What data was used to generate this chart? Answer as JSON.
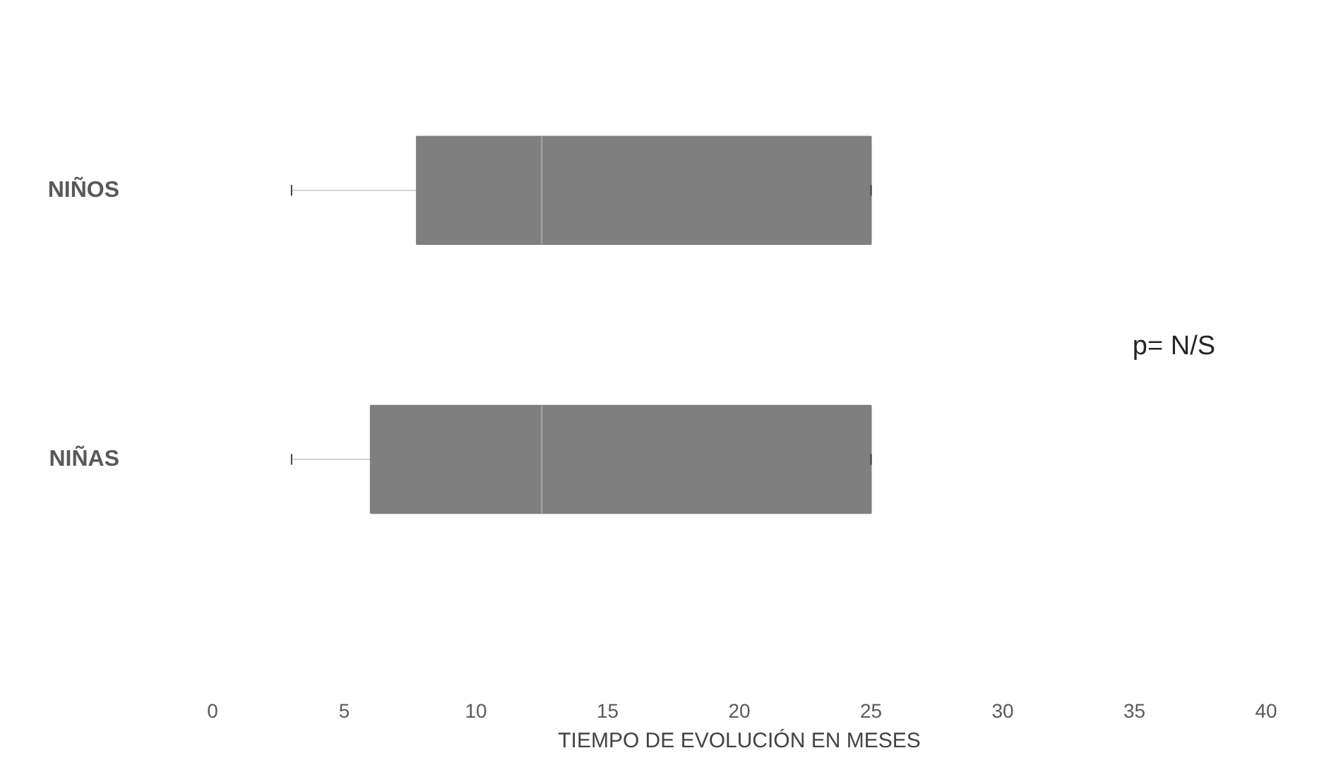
{
  "chart_data": {
    "type": "box",
    "orientation": "horizontal",
    "categories": [
      "NIÑOS",
      "NIÑAS"
    ],
    "boxes": [
      {
        "low": 3,
        "q1": 7.75,
        "median": 12.5,
        "q3": 25,
        "high": 25
      },
      {
        "low": 3,
        "q1": 6,
        "median": 12.5,
        "q3": 25,
        "high": 25
      }
    ],
    "color": "#7f7f7f",
    "xlabel": "TIEMPO DE EVOLUCIÓN EN MESES",
    "xlim": [
      0,
      40
    ],
    "xticks": [
      0,
      5,
      10,
      15,
      20,
      25,
      30,
      35,
      40
    ],
    "annotations": [
      "p= N/S"
    ],
    "grid": false
  }
}
